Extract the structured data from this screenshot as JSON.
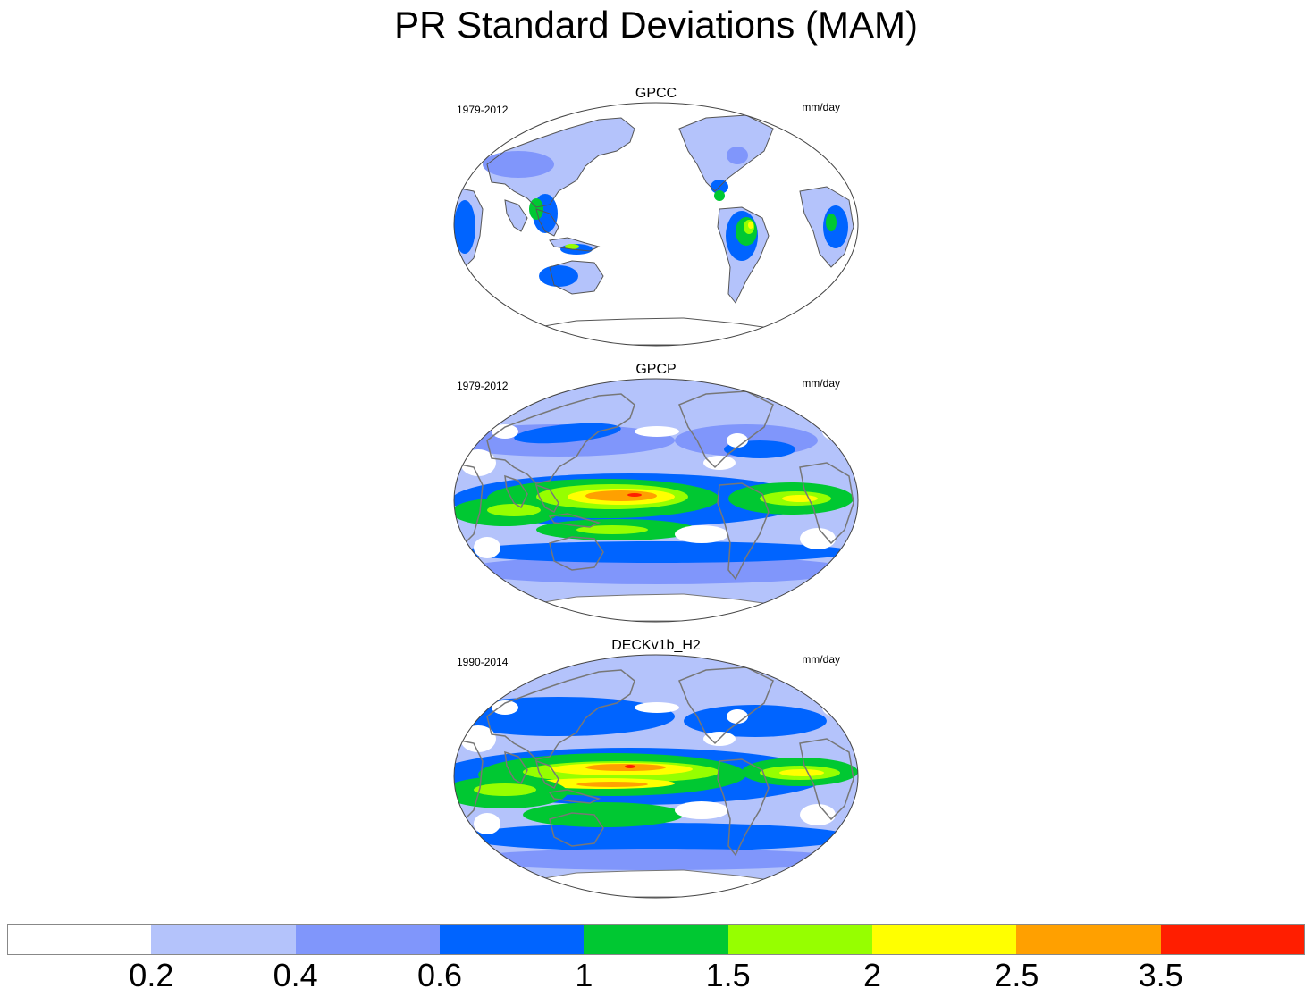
{
  "title": "PR Standard Deviations (MAM)",
  "panels": [
    {
      "name": "GPCC",
      "period": "1979-2012",
      "units": "mm/day",
      "field": "land-only"
    },
    {
      "name": "GPCP",
      "period": "1979-2012",
      "units": "mm/day",
      "field": "global"
    },
    {
      "name": "DECKv1b_H2",
      "period": "1990-2014",
      "units": "mm/day",
      "field": "global-model"
    }
  ],
  "colorbar": {
    "colors": [
      "#ffffff",
      "#b4c3fb",
      "#8096fb",
      "#0064ff",
      "#00c832",
      "#96ff00",
      "#ffff00",
      "#ffa000",
      "#ff1e00"
    ],
    "labels": [
      "0.2",
      "0.4",
      "0.6",
      "1",
      "1.5",
      "2",
      "2.5",
      "3.5"
    ]
  }
}
